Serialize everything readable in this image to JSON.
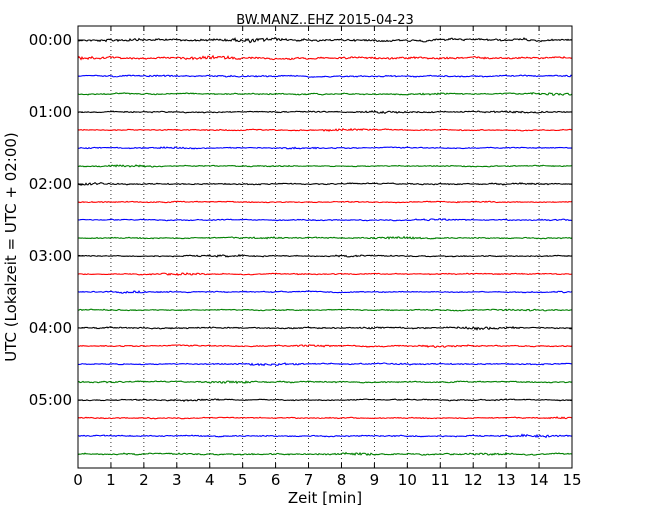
{
  "chart_data": {
    "type": "line",
    "title": "BW.MANZ..EHZ 2015-04-23",
    "xlabel": "Zeit  [min]",
    "ylabel": "UTC (Lokalzeit = UTC + 02:00)",
    "xlim": [
      0,
      15
    ],
    "x_ticks": [
      0,
      1,
      2,
      3,
      4,
      5,
      6,
      7,
      8,
      9,
      10,
      11,
      12,
      13,
      14,
      15
    ],
    "x_tick_labels": [
      "0",
      "1",
      "2",
      "3",
      "4",
      "5",
      "6",
      "7",
      "8",
      "9",
      "10",
      "11",
      "12",
      "13",
      "14",
      "15"
    ],
    "y_tick_labels": [
      "00:00",
      "01:00",
      "02:00",
      "03:00",
      "04:00",
      "05:00"
    ],
    "traces_per_hour": 4,
    "minutes_per_trace": 15,
    "grid": {
      "x": true,
      "y": false
    },
    "colors": [
      "#000000",
      "#ff0000",
      "#0000ff",
      "#008000"
    ],
    "traces": [
      {
        "start": "00:00",
        "amplitude": 0.6
      },
      {
        "start": "00:15",
        "amplitude": 0.55
      },
      {
        "start": "00:30",
        "amplitude": 0.4
      },
      {
        "start": "00:45",
        "amplitude": 0.35
      },
      {
        "start": "01:00",
        "amplitude": 0.35
      },
      {
        "start": "01:15",
        "amplitude": 0.3
      },
      {
        "start": "01:30",
        "amplitude": 0.3
      },
      {
        "start": "01:45",
        "amplitude": 0.3
      },
      {
        "start": "02:00",
        "amplitude": 0.35
      },
      {
        "start": "02:15",
        "amplitude": 0.3
      },
      {
        "start": "02:30",
        "amplitude": 0.3
      },
      {
        "start": "02:45",
        "amplitude": 0.35
      },
      {
        "start": "03:00",
        "amplitude": 0.3
      },
      {
        "start": "03:15",
        "amplitude": 0.3
      },
      {
        "start": "03:30",
        "amplitude": 0.3
      },
      {
        "start": "03:45",
        "amplitude": 0.3
      },
      {
        "start": "04:00",
        "amplitude": 0.4
      },
      {
        "start": "04:15",
        "amplitude": 0.35
      },
      {
        "start": "04:30",
        "amplitude": 0.35
      },
      {
        "start": "04:45",
        "amplitude": 0.35
      },
      {
        "start": "05:00",
        "amplitude": 0.35
      },
      {
        "start": "05:15",
        "amplitude": 0.3
      },
      {
        "start": "05:30",
        "amplitude": 0.35
      },
      {
        "start": "05:45",
        "amplitude": 0.4
      }
    ]
  }
}
